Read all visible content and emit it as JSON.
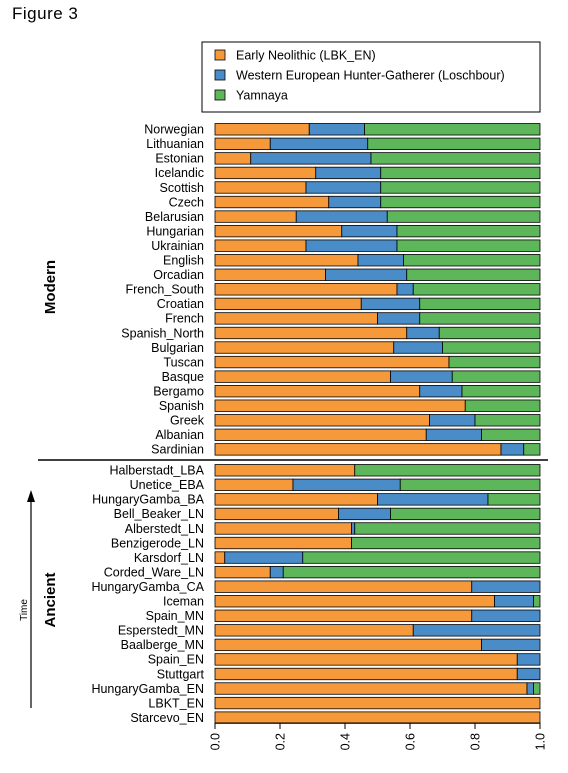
{
  "figure_title": "Figure 3",
  "colors": {
    "early_neolithic": "#f5993a",
    "whg": "#4a8cc8",
    "yamnaya": "#5eb65a",
    "border": "#000000"
  },
  "labels": {
    "modern": "Modern",
    "ancient": "Ancient",
    "time": "Time"
  },
  "chart_data": {
    "type": "bar",
    "orientation": "horizontal",
    "stacked": true,
    "xlim": [
      0,
      1
    ],
    "xticks": [
      "0.0",
      "0.2",
      "0.4",
      "0.6",
      "0.8",
      "1.0"
    ],
    "legend": {
      "position": "top",
      "entries": [
        "Early Neolithic (LBK_EN)",
        "Western European Hunter-Gatherer (Loschbour)",
        "Yamnaya"
      ]
    },
    "groups": [
      {
        "name": "Modern",
        "categories": [
          "Norwegian",
          "Lithuanian",
          "Estonian",
          "Icelandic",
          "Scottish",
          "Czech",
          "Belarusian",
          "Hungarian",
          "Ukrainian",
          "English",
          "Orcadian",
          "French_South",
          "Croatian",
          "French",
          "Spanish_North",
          "Bulgarian",
          "Tuscan",
          "Basque",
          "Bergamo",
          "Spanish",
          "Greek",
          "Albanian",
          "Sardinian"
        ],
        "series": [
          {
            "name": "Early Neolithic (LBK_EN)",
            "values": [
              0.29,
              0.17,
              0.11,
              0.31,
              0.28,
              0.35,
              0.25,
              0.39,
              0.28,
              0.44,
              0.34,
              0.56,
              0.45,
              0.5,
              0.59,
              0.55,
              0.72,
              0.54,
              0.63,
              0.77,
              0.66,
              0.65,
              0.88
            ]
          },
          {
            "name": "Western European Hunter-Gatherer (Loschbour)",
            "values": [
              0.17,
              0.3,
              0.37,
              0.2,
              0.23,
              0.16,
              0.28,
              0.17,
              0.28,
              0.14,
              0.25,
              0.05,
              0.18,
              0.13,
              0.1,
              0.15,
              0.0,
              0.19,
              0.13,
              0.0,
              0.14,
              0.17,
              0.07
            ]
          },
          {
            "name": "Yamnaya",
            "values": [
              0.54,
              0.53,
              0.52,
              0.49,
              0.49,
              0.49,
              0.47,
              0.44,
              0.44,
              0.42,
              0.41,
              0.39,
              0.37,
              0.37,
              0.31,
              0.3,
              0.28,
              0.27,
              0.24,
              0.23,
              0.2,
              0.18,
              0.05
            ]
          }
        ]
      },
      {
        "name": "Ancient",
        "categories": [
          "Halberstadt_LBA",
          "Unetice_EBA",
          "HungaryGamba_BA",
          "Bell_Beaker_LN",
          "Alberstedt_LN",
          "Benzigerode_LN",
          "Karsdorf_LN",
          "Corded_Ware_LN",
          "HungaryGamba_CA",
          "Iceman",
          "Spain_MN",
          "Esperstedt_MN",
          "Baalberge_MN",
          "Spain_EN",
          "Stuttgart",
          "HungaryGamba_EN",
          "LBKT_EN",
          "Starcevo_EN"
        ],
        "series": [
          {
            "name": "Early Neolithic (LBK_EN)",
            "values": [
              0.43,
              0.24,
              0.5,
              0.38,
              0.42,
              0.42,
              0.03,
              0.17,
              0.79,
              0.86,
              0.79,
              0.61,
              0.82,
              0.93,
              0.93,
              0.96,
              1.0,
              1.0
            ]
          },
          {
            "name": "Western European Hunter-Gatherer (Loschbour)",
            "values": [
              0.0,
              0.33,
              0.34,
              0.16,
              0.01,
              0.0,
              0.24,
              0.04,
              0.21,
              0.12,
              0.21,
              0.39,
              0.18,
              0.07,
              0.07,
              0.02,
              0.0,
              0.0
            ]
          },
          {
            "name": "Yamnaya",
            "values": [
              0.57,
              0.43,
              0.16,
              0.46,
              0.57,
              0.58,
              0.73,
              0.79,
              0.0,
              0.02,
              0.0,
              0.0,
              0.0,
              0.0,
              0.0,
              0.02,
              0.0,
              0.0
            ]
          }
        ]
      }
    ]
  }
}
